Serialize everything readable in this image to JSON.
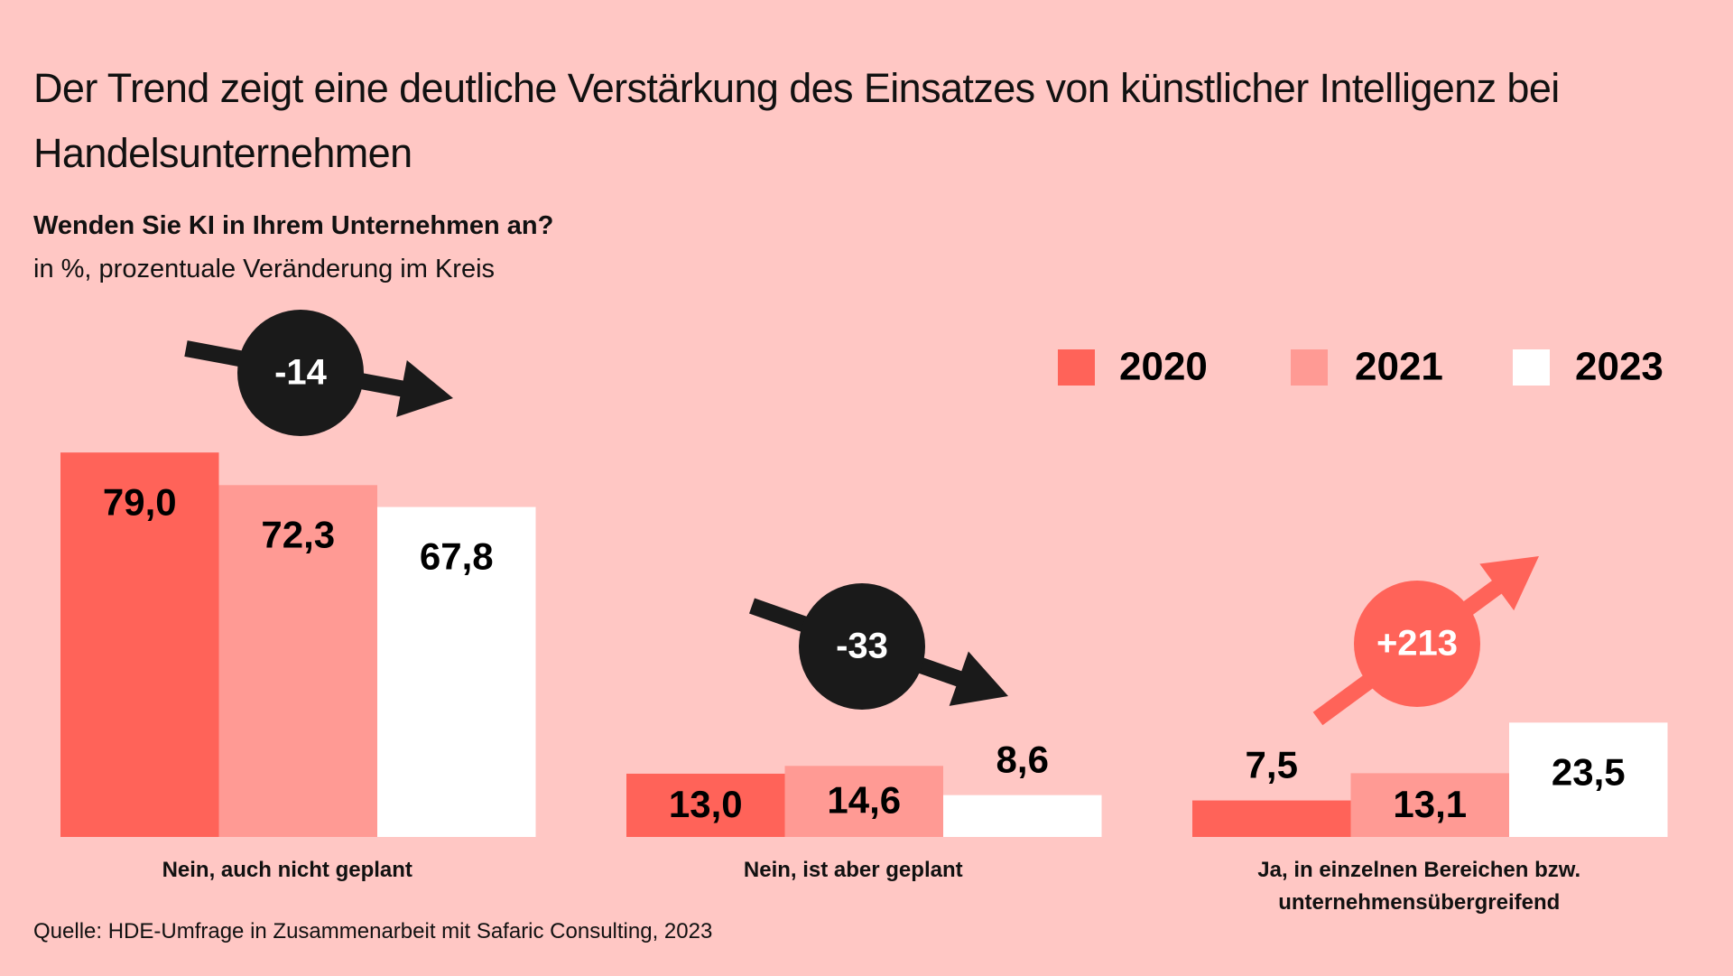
{
  "chart_data": {
    "type": "bar",
    "title": "Der Trend zeigt eine deutliche Verstärkung des Einsatzes von künstlicher Intelligenz bei Handelsunternehmen",
    "subtitle": "Wenden Sie KI in Ihrem Unternehmen an?",
    "unit_note": "in %, prozentuale Veränderung im Kreis",
    "categories": [
      "Nein, auch nicht geplant",
      "Nein, ist aber geplant",
      "Ja, in einzelnen Bereichen bzw. unternehmensübergreifend"
    ],
    "series": [
      {
        "name": "2020",
        "color": "#ff6359",
        "values": [
          79.0,
          13.0,
          7.5
        ],
        "value_labels": [
          "79,0",
          "13,0",
          "7,5"
        ]
      },
      {
        "name": "2021",
        "color": "#ff9a94",
        "values": [
          72.3,
          14.6,
          13.1
        ],
        "value_labels": [
          "72,3",
          "14,6",
          "13,1"
        ]
      },
      {
        "name": "2023",
        "color": "#ffffff",
        "values": [
          67.8,
          8.6,
          23.5
        ],
        "value_labels": [
          "67,8",
          "8,6",
          "23,5"
        ]
      }
    ],
    "change_labels": [
      "-14",
      "-33",
      "+213"
    ],
    "change_colors": [
      "#1a1a1a",
      "#1a1a1a",
      "#ff6359"
    ],
    "source": "Quelle: HDE-Umfrage in Zusammenarbeit mit Safaric Consulting, 2023"
  }
}
